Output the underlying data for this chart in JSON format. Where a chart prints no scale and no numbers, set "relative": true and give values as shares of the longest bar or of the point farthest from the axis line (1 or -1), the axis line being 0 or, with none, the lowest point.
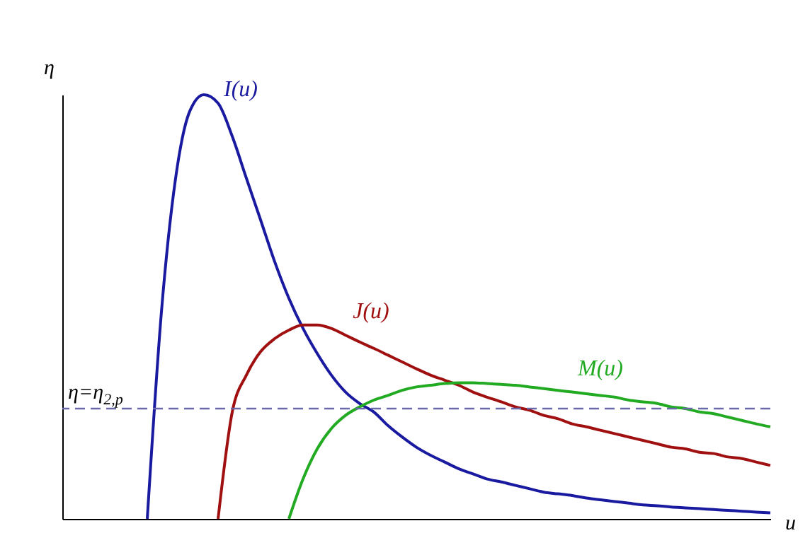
{
  "chart_data": {
    "type": "line",
    "relative": true,
    "xlabel": "u",
    "ylabel": "η",
    "categories": [
      null,
      null,
      null,
      null,
      null,
      null,
      null,
      null,
      null,
      null,
      null,
      null,
      null,
      null,
      null,
      null,
      null,
      null,
      null,
      null,
      null,
      null,
      null,
      null,
      null,
      null,
      null,
      null,
      null,
      null,
      null,
      null,
      null,
      null,
      null,
      null,
      null,
      null,
      null,
      null,
      null,
      null,
      null,
      null,
      null,
      null,
      null,
      null,
      null,
      null,
      null
    ],
    "series": [
      {
        "name": "I(u)",
        "color": "#1a1aa0",
        "values": [
          null,
          null,
          null,
          null,
          null,
          null,
          0,
          0.488,
          0.803,
          0.961,
          1.0,
          0.98,
          0.902,
          0.803,
          0.705,
          0.606,
          0.52,
          0.449,
          0.39,
          0.339,
          0.299,
          0.272,
          0.252,
          0.22,
          0.193,
          0.169,
          0.15,
          0.134,
          0.118,
          0.106,
          0.094,
          0.087,
          0.079,
          0.071,
          0.063,
          0.059,
          0.055,
          0.049,
          0.045,
          0.041,
          0.037,
          0.033,
          0.031,
          0.028,
          0.026,
          0.024,
          0.022,
          0.02,
          0.018,
          0.016,
          0.014
        ]
      },
      {
        "name": "J(u)",
        "color": "#a01010",
        "values": [
          null,
          null,
          null,
          null,
          null,
          null,
          null,
          null,
          null,
          null,
          null,
          0,
          0.252,
          0.339,
          0.394,
          0.425,
          0.445,
          0.457,
          0.457,
          0.449,
          0.433,
          0.417,
          0.402,
          0.386,
          0.37,
          0.354,
          0.339,
          0.327,
          0.315,
          0.299,
          0.287,
          0.276,
          0.264,
          0.256,
          0.244,
          0.236,
          0.224,
          0.217,
          0.209,
          0.201,
          0.193,
          0.185,
          0.177,
          0.169,
          0.165,
          0.157,
          0.154,
          0.146,
          0.142,
          0.134,
          0.126
        ]
      },
      {
        "name": "M(u)",
        "color": "#22aa22",
        "values": [
          null,
          null,
          null,
          null,
          null,
          null,
          null,
          null,
          null,
          null,
          null,
          null,
          null,
          null,
          null,
          null,
          0,
          0.094,
          0.165,
          0.213,
          0.244,
          0.264,
          0.28,
          0.291,
          0.303,
          0.311,
          0.315,
          0.319,
          0.321,
          0.321,
          0.319,
          0.317,
          0.315,
          0.311,
          0.307,
          0.303,
          0.299,
          0.295,
          0.291,
          0.287,
          0.28,
          0.276,
          0.272,
          0.264,
          0.26,
          0.252,
          0.248,
          0.24,
          0.232,
          0.224,
          0.217
        ]
      }
    ],
    "ref_lines": [
      {
        "axis": "y",
        "value": 0.26,
        "label": "η=η$_{2,p}$",
        "color": "#6a6aaa",
        "line_style": "dashed"
      }
    ]
  }
}
